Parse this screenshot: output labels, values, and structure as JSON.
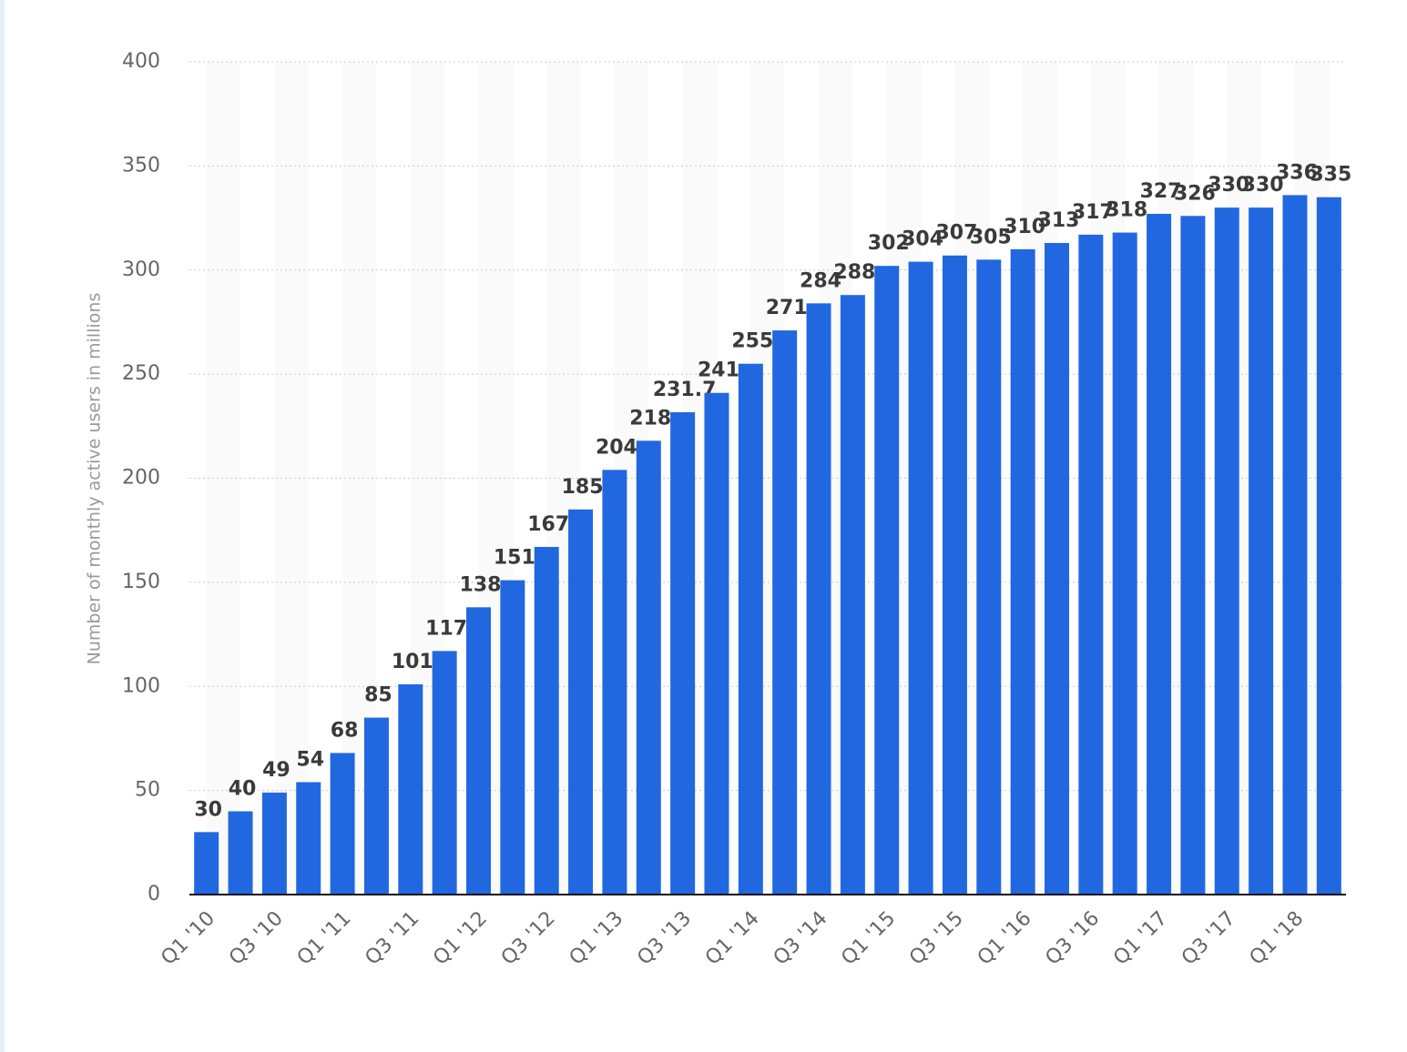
{
  "chart_data": {
    "type": "bar",
    "y_label": "Number of monthly active users in millions",
    "categories": [
      "Q1 '10",
      null,
      "Q3 '10",
      null,
      "Q1 '11",
      null,
      "Q3 '11",
      null,
      "Q1 '12",
      null,
      "Q3 '12",
      null,
      "Q1 '13",
      null,
      "Q3 '13",
      null,
      "Q1 '14",
      null,
      "Q3 '14",
      null,
      "Q1 '15",
      null,
      "Q3 '15",
      null,
      "Q1 '16",
      null,
      "Q3 '16",
      null,
      "Q1 '17",
      null,
      "Q3 '17",
      null,
      "Q1 '18",
      null
    ],
    "values": [
      30,
      40,
      49,
      54,
      68,
      85,
      101,
      117,
      138,
      151,
      167,
      185,
      204,
      218,
      231.7,
      241,
      255,
      271,
      284,
      288,
      302,
      304,
      307,
      305,
      310,
      313,
      317,
      318,
      327,
      326,
      330,
      330,
      336,
      335
    ],
    "color": "#2168e0",
    "ylim": [
      0,
      400
    ],
    "yticks": [
      0,
      50,
      100,
      150,
      200,
      250,
      300,
      350,
      400
    ],
    "grid": true
  }
}
